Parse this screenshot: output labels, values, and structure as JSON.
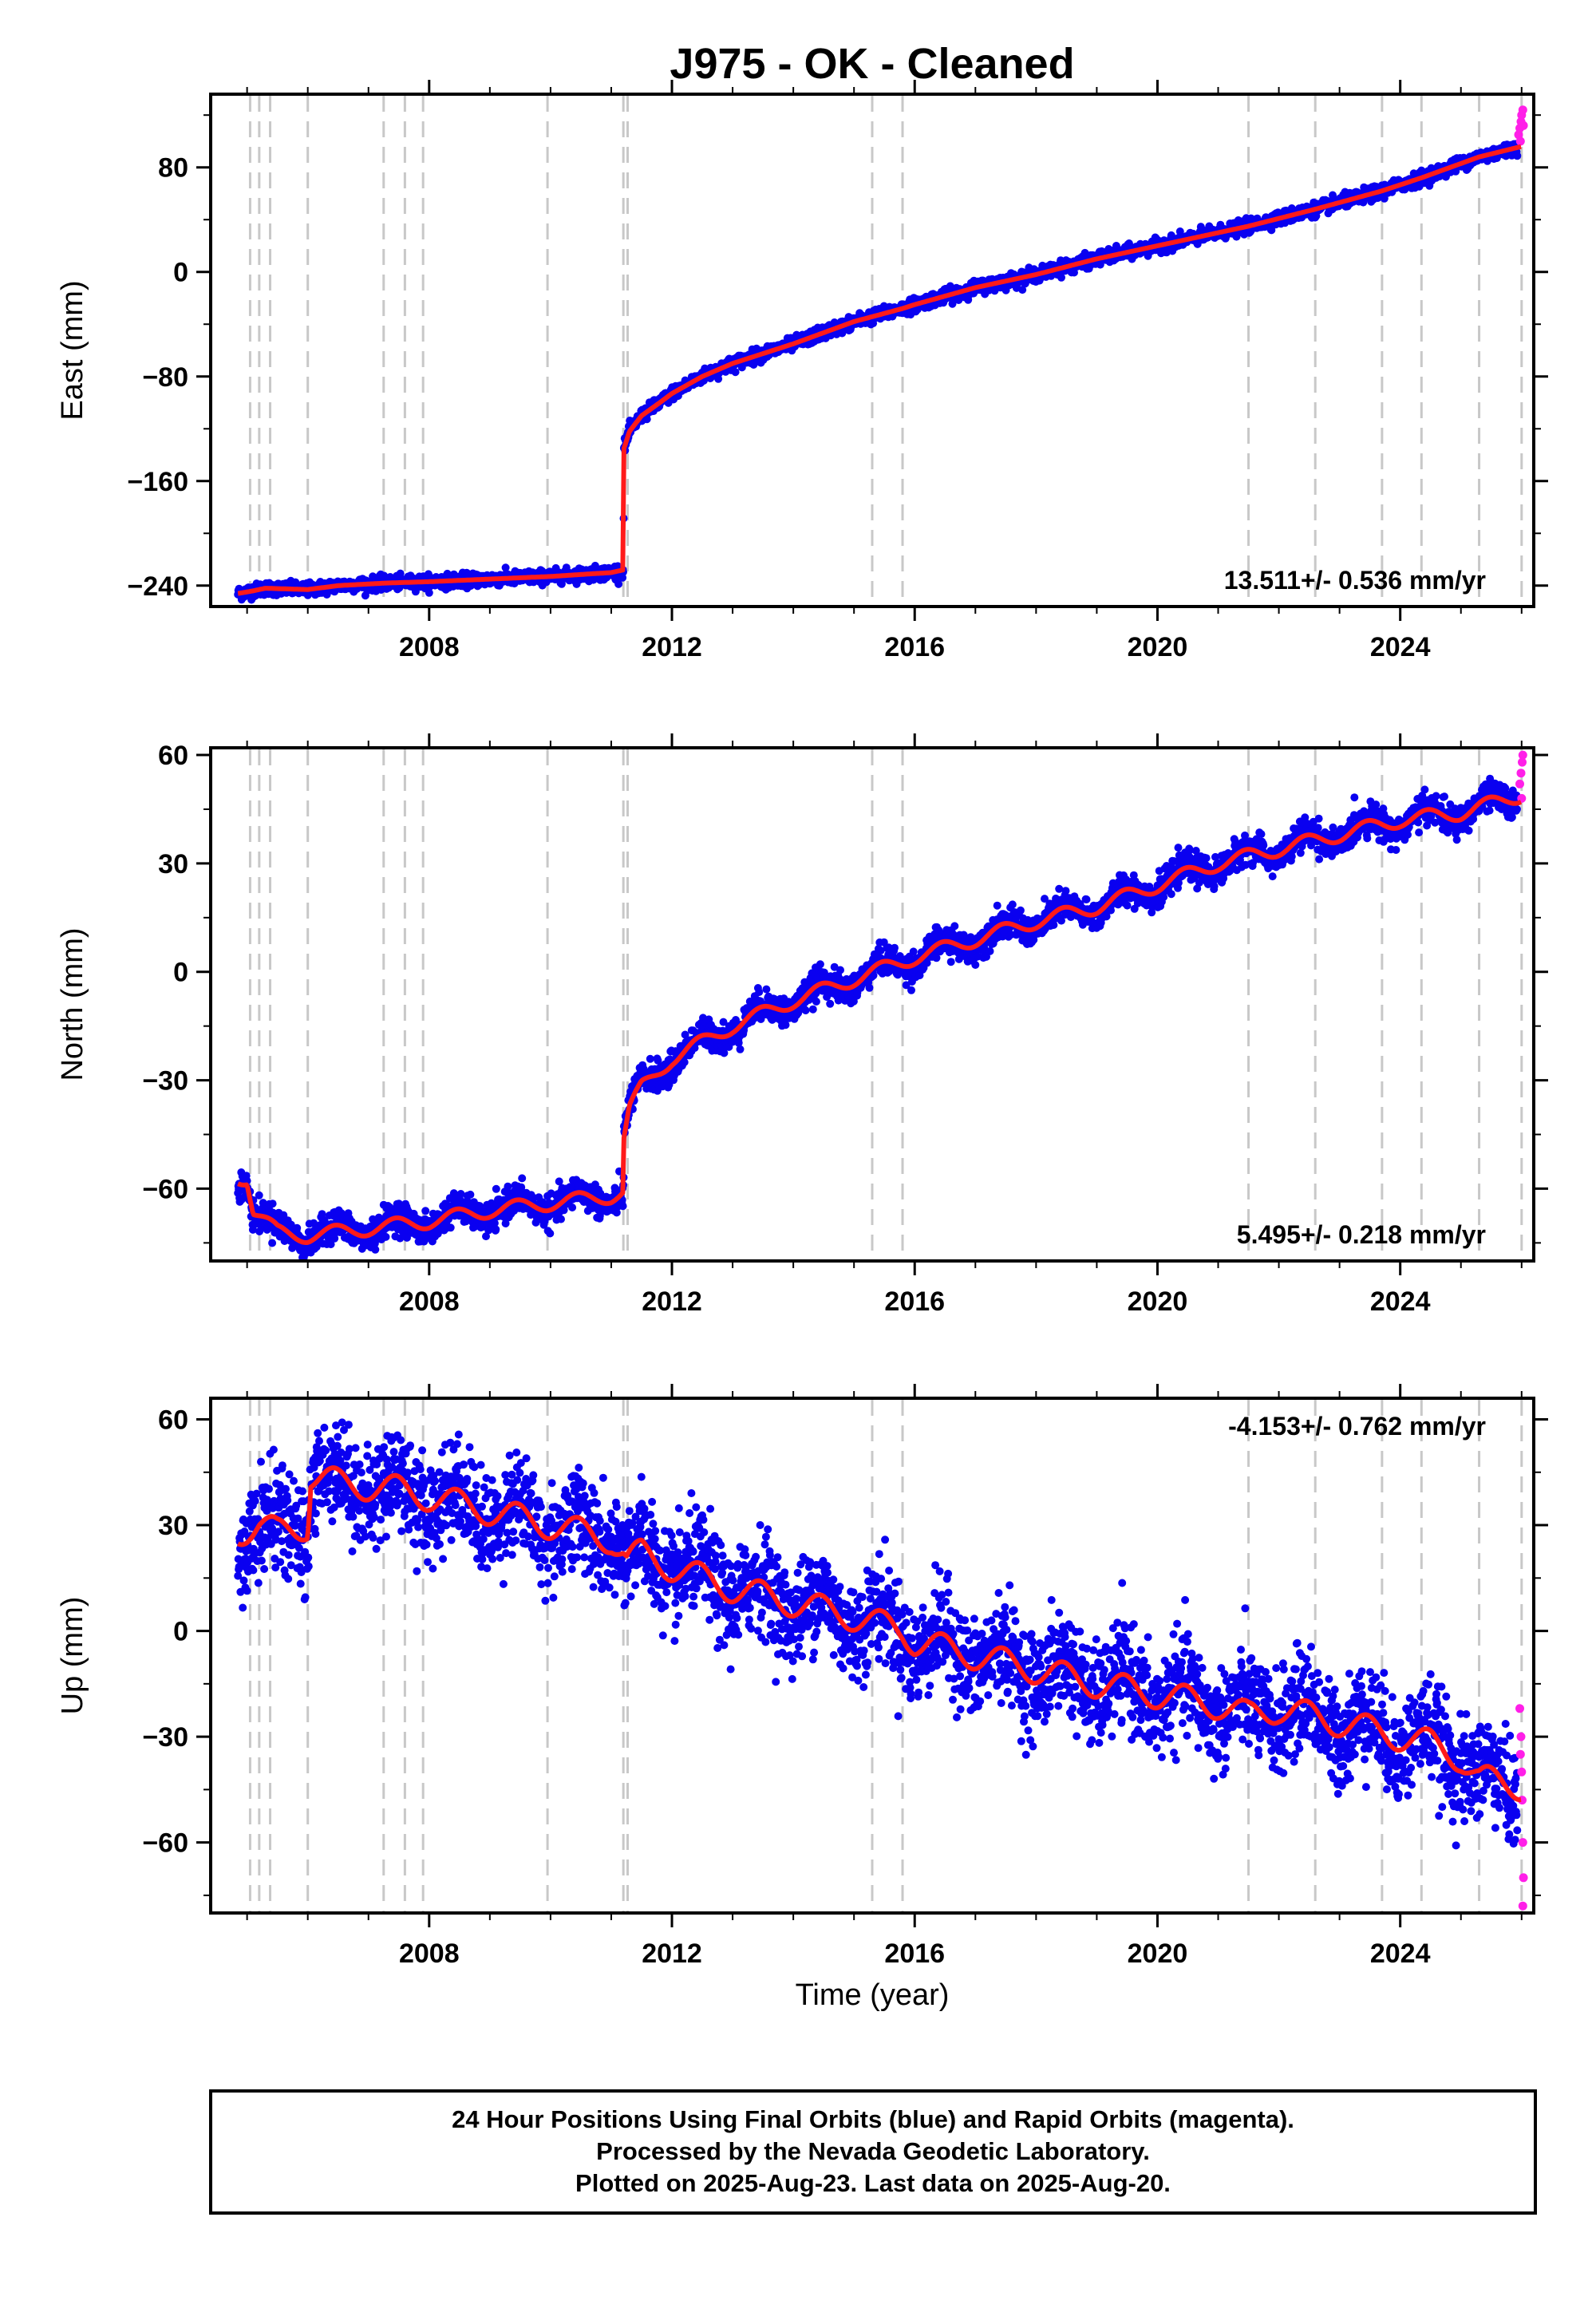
{
  "chart_data": {
    "type": "scatter",
    "title": "J975  - OK - Cleaned",
    "xlabel": "Time (year)",
    "xlim": [
      2004.4,
      2026.2
    ],
    "xticks": [
      2008,
      2012,
      2016,
      2020,
      2024
    ],
    "xtick_labels": [
      "2008",
      "2012",
      "2016",
      "2020",
      "2024"
    ],
    "minor_xtick_step": 1,
    "colors": {
      "final_orbits": "#0a00f0",
      "rapid_orbits": "#ff1fe8",
      "model_fit": "#ff1a1a",
      "event_lines": "#c8c8c8"
    },
    "event_lines": [
      2005.05,
      2005.2,
      2005.38,
      2006.0,
      2007.25,
      2007.6,
      2007.9,
      2009.95,
      2011.2,
      2011.27,
      2015.3,
      2015.8,
      2021.5,
      2022.6,
      2023.7,
      2024.35,
      2025.3,
      2026.0
    ],
    "panels": [
      {
        "name": "east",
        "ylabel": "East (mm)",
        "ylim": [
          -256,
          136
        ],
        "yticks": [
          -240,
          -160,
          -80,
          0,
          80
        ],
        "ytick_labels": [
          "−240",
          "−160",
          "−80",
          "0",
          "80"
        ],
        "rate_label": "13.511+/- 0.536 mm/yr",
        "scatter_noise_mm": 2.5,
        "model": [
          [
            2004.85,
            -246
          ],
          [
            2005.1,
            -244
          ],
          [
            2005.3,
            -242
          ],
          [
            2006.0,
            -243
          ],
          [
            2006.5,
            -240
          ],
          [
            2007.3,
            -238
          ],
          [
            2008.0,
            -237
          ],
          [
            2009.0,
            -235
          ],
          [
            2010.0,
            -233
          ],
          [
            2011.0,
            -230
          ],
          [
            2011.2,
            -228
          ],
          [
            2011.21,
            -135
          ],
          [
            2011.3,
            -122
          ],
          [
            2011.5,
            -110
          ],
          [
            2011.8,
            -100
          ],
          [
            2012.0,
            -93
          ],
          [
            2012.5,
            -80
          ],
          [
            2013.0,
            -70
          ],
          [
            2014.0,
            -55
          ],
          [
            2015.0,
            -38
          ],
          [
            2015.8,
            -28
          ],
          [
            2016.0,
            -25
          ],
          [
            2017.0,
            -12
          ],
          [
            2018.0,
            -2
          ],
          [
            2019.0,
            10
          ],
          [
            2020.0,
            20
          ],
          [
            2021.5,
            35
          ],
          [
            2022.6,
            48
          ],
          [
            2023.7,
            62
          ],
          [
            2024.35,
            72
          ],
          [
            2025.3,
            88
          ],
          [
            2026.0,
            96
          ]
        ],
        "rapid_points": [
          [
            2025.95,
            105
          ],
          [
            2025.97,
            110
          ],
          [
            2025.99,
            115
          ],
          [
            2026.0,
            120
          ],
          [
            2026.02,
            124
          ],
          [
            2026.03,
            112
          ],
          [
            2025.98,
            100
          ]
        ]
      },
      {
        "name": "north",
        "ylabel": "North (mm)",
        "ylim": [
          -80,
          62
        ],
        "yticks": [
          -60,
          -30,
          0,
          30,
          60
        ],
        "ytick_labels": [
          "−60",
          "−30",
          "0",
          "30",
          "60"
        ],
        "rate_label": "5.495+/- 0.218 mm/yr",
        "scatter_noise_mm": 2.0,
        "seasonal_amplitude_mm": 2.5,
        "model": [
          [
            2004.85,
            -57
          ],
          [
            2005.0,
            -57
          ],
          [
            2005.1,
            -66
          ],
          [
            2005.5,
            -72
          ],
          [
            2006.0,
            -73
          ],
          [
            2007.0,
            -71
          ],
          [
            2008.0,
            -69
          ],
          [
            2009.0,
            -66
          ],
          [
            2010.0,
            -64
          ],
          [
            2011.0,
            -62
          ],
          [
            2011.2,
            -61
          ],
          [
            2011.21,
            -46
          ],
          [
            2011.3,
            -38
          ],
          [
            2011.5,
            -32
          ],
          [
            2012.0,
            -24
          ],
          [
            2013.0,
            -15
          ],
          [
            2014.0,
            -8
          ],
          [
            2015.0,
            -2
          ],
          [
            2016.0,
            4
          ],
          [
            2017.0,
            9
          ],
          [
            2018.0,
            14
          ],
          [
            2019.0,
            18
          ],
          [
            2020.0,
            24
          ],
          [
            2021.0,
            30
          ],
          [
            2022.0,
            34
          ],
          [
            2023.0,
            38
          ],
          [
            2024.0,
            42
          ],
          [
            2025.0,
            44
          ],
          [
            2026.0,
            49
          ]
        ],
        "rapid_points": [
          [
            2025.97,
            52
          ],
          [
            2025.99,
            55
          ],
          [
            2026.01,
            58
          ],
          [
            2026.02,
            60
          ],
          [
            2026.0,
            48
          ]
        ]
      },
      {
        "name": "up",
        "ylabel": "Up (mm)",
        "ylim": [
          -80,
          66
        ],
        "yticks": [
          -60,
          -30,
          0,
          30,
          60
        ],
        "ytick_labels": [
          "−60",
          "−30",
          "0",
          "30",
          "60"
        ],
        "rate_label": "-4.153+/- 0.762 mm/yr",
        "scatter_noise_mm": 7.0,
        "seasonal_amplitude_mm": 5.0,
        "model": [
          [
            2004.85,
            28
          ],
          [
            2005.2,
            30
          ],
          [
            2005.5,
            28
          ],
          [
            2006.0,
            30
          ],
          [
            2006.05,
            44
          ],
          [
            2006.5,
            42
          ],
          [
            2007.5,
            40
          ],
          [
            2008.0,
            38
          ],
          [
            2009.0,
            34
          ],
          [
            2010.0,
            30
          ],
          [
            2011.0,
            26
          ],
          [
            2011.2,
            22
          ],
          [
            2011.25,
            20
          ],
          [
            2011.5,
            22
          ],
          [
            2012.0,
            18
          ],
          [
            2013.0,
            12
          ],
          [
            2014.0,
            8
          ],
          [
            2015.0,
            4
          ],
          [
            2015.8,
            0
          ],
          [
            2016.0,
            -3
          ],
          [
            2017.0,
            -7
          ],
          [
            2018.0,
            -11
          ],
          [
            2019.0,
            -15
          ],
          [
            2020.0,
            -18
          ],
          [
            2021.0,
            -21
          ],
          [
            2021.5,
            -24
          ],
          [
            2022.0,
            -22
          ],
          [
            2023.0,
            -26
          ],
          [
            2024.0,
            -30
          ],
          [
            2024.5,
            -32
          ],
          [
            2025.0,
            -36
          ],
          [
            2025.3,
            -42
          ],
          [
            2026.0,
            -44
          ]
        ],
        "rapid_points": [
          [
            2025.97,
            -22
          ],
          [
            2025.99,
            -30
          ],
          [
            2026.0,
            -40
          ],
          [
            2026.01,
            -48
          ],
          [
            2026.02,
            -60
          ],
          [
            2026.03,
            -70
          ],
          [
            2026.02,
            -78
          ],
          [
            2025.98,
            -35
          ]
        ]
      }
    ]
  },
  "footer": {
    "line1": "24 Hour Positions Using Final Orbits (blue) and Rapid Orbits (magenta).",
    "line2": "Processed by the Nevada Geodetic Laboratory.",
    "line3": "Plotted on 2025-Aug-23. Last data on 2025-Aug-20."
  }
}
